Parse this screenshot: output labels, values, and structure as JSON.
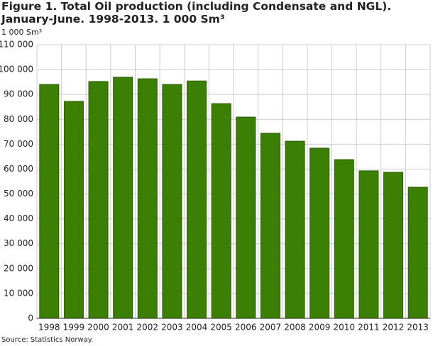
{
  "chart_data": {
    "type": "bar",
    "title": "Figure 1. Total Oil production (including Condensate and NGL). January-June. 1998-2013. 1 000 Sm³",
    "y_axis_label": "1 000 Sm³",
    "source": "Source: Statistics Norway.",
    "categories": [
      "1998",
      "1999",
      "2000",
      "2001",
      "2002",
      "2003",
      "2004",
      "2005",
      "2006",
      "2007",
      "2008",
      "2009",
      "2010",
      "2011",
      "2012",
      "2013"
    ],
    "values": [
      94000,
      87200,
      95200,
      96900,
      96300,
      94000,
      95400,
      86300,
      80900,
      74400,
      71200,
      68400,
      63800,
      59300,
      58700,
      52700
    ],
    "color": "#3b7f04",
    "ylim": [
      0,
      110000
    ],
    "yticks": [
      0,
      {
        "value": 10000,
        "label": "10 000"
      },
      {
        "value": 20000,
        "label": "20 000"
      },
      {
        "value": 30000,
        "label": "30 000"
      },
      {
        "value": 40000,
        "label": "40 000"
      },
      {
        "value": 50000,
        "label": "50 000"
      },
      {
        "value": 60000,
        "label": "60 000"
      },
      {
        "value": 70000,
        "label": "70 000"
      },
      {
        "value": 80000,
        "label": "80 000"
      },
      {
        "value": 90000,
        "label": "90 000"
      },
      {
        "value": 100000,
        "label": "100 000"
      },
      {
        "value": 110000,
        "label": "110 000"
      }
    ],
    "grid": true
  }
}
